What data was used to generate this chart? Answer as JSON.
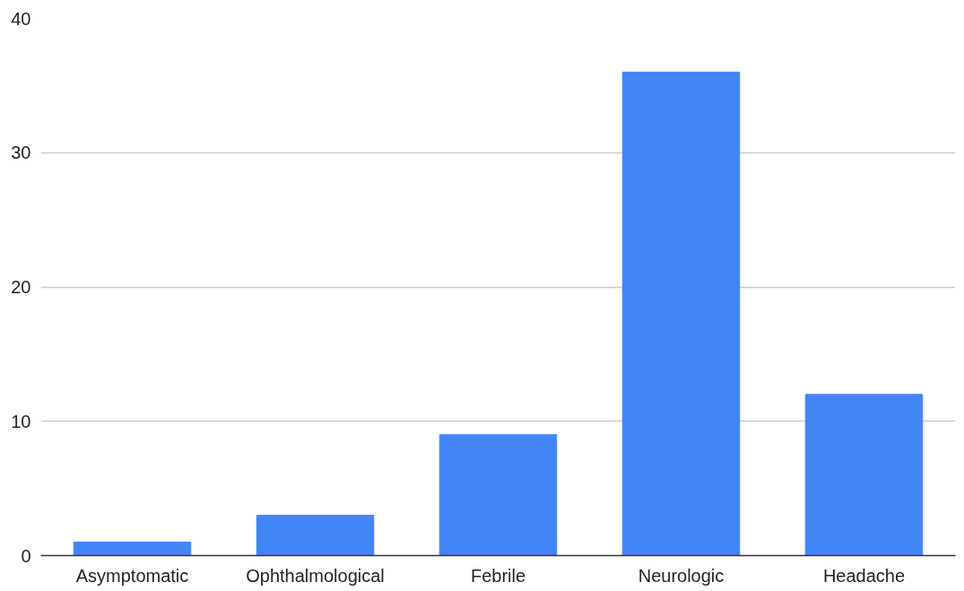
{
  "chart_data": {
    "type": "bar",
    "categories": [
      "Asymptomatic",
      "Ophthalmological",
      "Febrile",
      "Neurologic",
      "Headache"
    ],
    "values": [
      1,
      3,
      9,
      36,
      12
    ],
    "color": "#4285f4",
    "ylim": [
      0,
      40
    ],
    "yticks": [
      0,
      10,
      20,
      30,
      40
    ],
    "grid": "y"
  }
}
